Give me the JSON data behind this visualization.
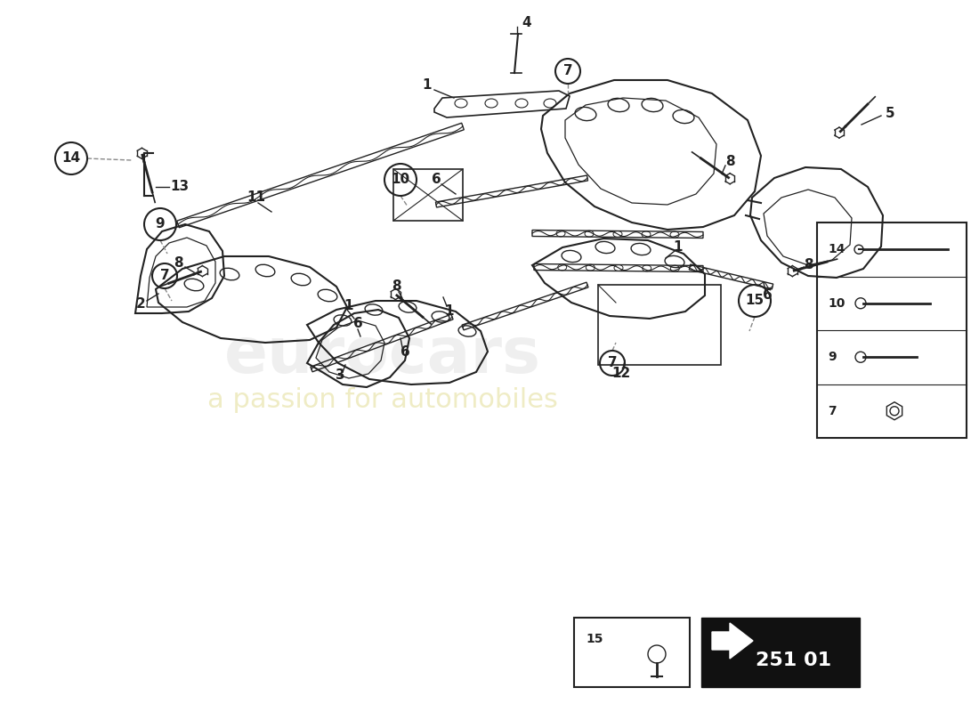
{
  "bg_color": "#ffffff",
  "line_color": "#222222",
  "dashed_line_color": "#888888",
  "diagram_code": "251 01",
  "watermark_main": "eurocars",
  "watermark_sub": "a passion for automobiles"
}
